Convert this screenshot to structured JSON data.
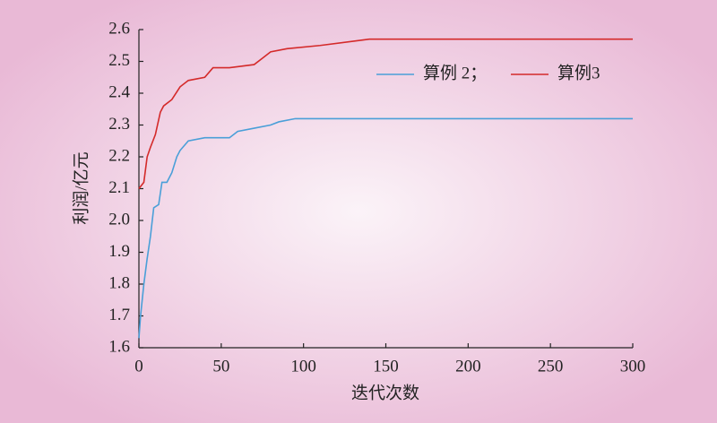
{
  "chart_data": {
    "type": "line",
    "xlabel": "迭代次数",
    "ylabel": "利润/亿元",
    "xlim": [
      0,
      300
    ],
    "xticks": [
      0,
      50,
      100,
      150,
      200,
      250,
      300
    ],
    "ylim": [
      1.6,
      2.6
    ],
    "yticks": [
      1.6,
      1.7,
      1.8,
      1.9,
      {
        "value": 2,
        "label": "2.0"
      },
      2.1,
      2.2,
      2.3,
      2.4,
      2.5,
      2.6
    ],
    "legend": "upper right",
    "series": [
      {
        "name": "算例 2；",
        "color": "#4a9fd8",
        "x": [
          0,
          1,
          3,
          5,
          7,
          9,
          12,
          14,
          17,
          20,
          23,
          25,
          30,
          40,
          55,
          60,
          70,
          80,
          85,
          95,
          300
        ],
        "values": [
          1.63,
          1.7,
          1.8,
          1.88,
          1.95,
          2.04,
          2.05,
          2.12,
          2.12,
          2.15,
          2.2,
          2.22,
          2.25,
          2.26,
          2.26,
          2.28,
          2.29,
          2.3,
          2.31,
          2.32,
          2.32
        ]
      },
      {
        "name": "算例3",
        "color": "#d42a2a",
        "x": [
          0,
          3,
          5,
          7,
          10,
          13,
          15,
          20,
          25,
          30,
          40,
          45,
          55,
          70,
          75,
          80,
          90,
          110,
          140,
          170,
          300
        ],
        "values": [
          2.1,
          2.12,
          2.2,
          2.23,
          2.27,
          2.34,
          2.36,
          2.38,
          2.42,
          2.44,
          2.45,
          2.48,
          2.48,
          2.49,
          2.51,
          2.53,
          2.54,
          2.55,
          2.57,
          2.57,
          2.57
        ]
      }
    ]
  }
}
